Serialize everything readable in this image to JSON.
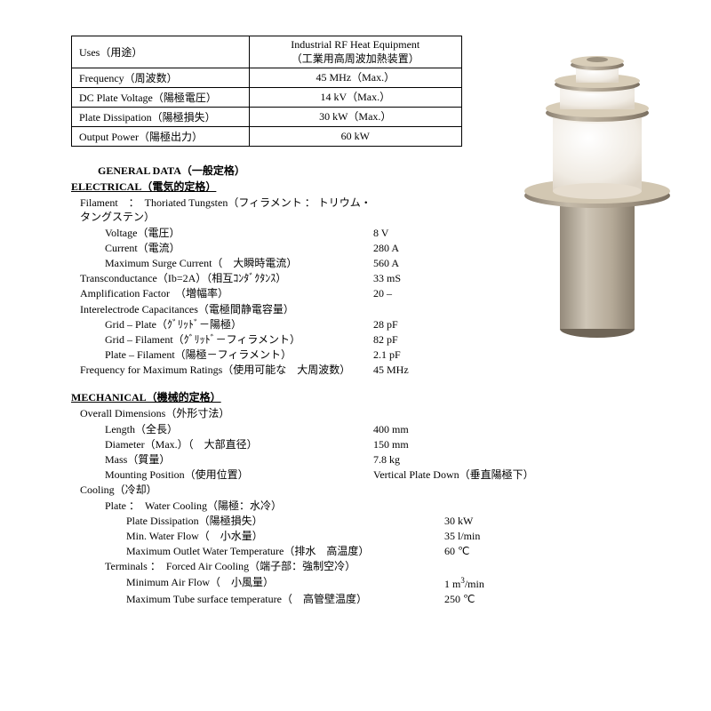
{
  "specTable": {
    "rows": [
      {
        "label": "Uses（用途）",
        "value": "Industrial RF Heat Equipment\n（工業用高周波加熱装置）"
      },
      {
        "label": "Frequency（周波数）",
        "value": "45 MHz（Max.）"
      },
      {
        "label": "DC Plate Voltage（陽極電圧）",
        "value": "14 kV（Max.）"
      },
      {
        "label": "Plate Dissipation（陽極損失）",
        "value": "30 kW（Max.）"
      },
      {
        "label": "Output Power（陽極出力）",
        "value": "60 kW"
      }
    ]
  },
  "sections": {
    "general": "GENERAL DATA（一般定格）",
    "electrical": "ELECTRICAL（電気的定格）",
    "mechanical": "MECHANICAL（機械的定格）"
  },
  "electrical": {
    "filament_header": "Filament　：　Thoriated Tungsten（フィラメント ： トリウム・タングステン）",
    "voltage_l": "Voltage（電圧）",
    "voltage_v": "8 V",
    "current_l": "Current（電流）",
    "current_v": "280 A",
    "surge_l": "Maximum Surge Current（　大瞬時電流）",
    "surge_v": "560 A",
    "trans_l": "Transconductance（Ib=2A）（相互ｺﾝﾀﾞｸﾀﾝｽ）",
    "trans_v": "33 mS",
    "amp_l": "Amplification Factor　（増幅率）",
    "amp_v": "20 –",
    "cap_header": "Interelectrode Capacitances（電極間静電容量）",
    "gp_l": "Grid – Plate（ｸﾞﾘｯﾄﾞ－陽極）",
    "gp_v": "28 pF",
    "gf_l": "Grid – Filament（ｸﾞﾘｯﾄﾞ－フィラメント）",
    "gf_v": "82 pF",
    "pf_l": "Plate – Filament（陽極－フィラメント）",
    "pf_v": "2.1 pF",
    "freq_l": "Frequency for Maximum Ratings（使用可能な　大周波数）",
    "freq_v": "45 MHz"
  },
  "mechanical": {
    "dim_header": "Overall Dimensions（外形寸法）",
    "len_l": "Length（全長）",
    "len_v": "400 mm",
    "dia_l": "Diameter（Max.）（　大部直径）",
    "dia_v": "150 mm",
    "mass_l": "Mass（質量）",
    "mass_v": "7.8 kg",
    "mount_l": "Mounting Position（使用位置）",
    "mount_v": "Vertical Plate Down（垂直陽極下）",
    "cool_header": "Cooling（冷却）",
    "plate_cool_header": "Plate ：　Water Cooling（陽極：水冷）",
    "pd_l": "Plate Dissipation（陽極損失）",
    "pd_v": "30 kW",
    "wf_l": "Min. Water Flow（　小水量）",
    "wf_v": "35 l/min",
    "wt_l": "Maximum Outlet Water Temperature（排水　高温度）",
    "wt_v": "60 ℃",
    "term_header": "Terminals ：　Forced Air Cooling（端子部：強制空冷）",
    "af_l": "Minimum Air Flow（　小風量）",
    "ts_l": "Maximum Tube surface temperature（　高管壁温度）",
    "ts_v": "250 ℃"
  },
  "tube_svg": {
    "body_fill": "#e9e2d9",
    "ceramic_fill": "#f2eee8",
    "metal_fill": "#a99f92",
    "rim_fill": "#cbbfa8",
    "shadow": "#b8ad9e"
  }
}
